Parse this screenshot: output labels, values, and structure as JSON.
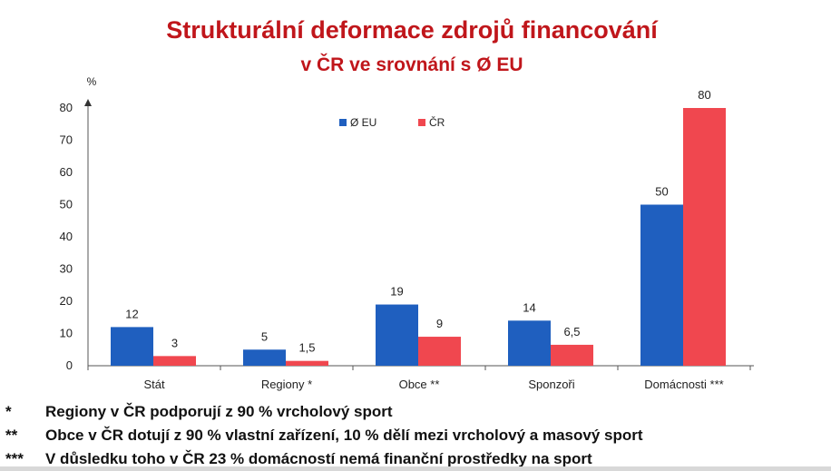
{
  "title": "Strukturální deformace zdrojů financování",
  "subtitle": "v ČR ve srovnání s Ø EU",
  "colors": {
    "eu": "#1f5fbf",
    "cr": "#f0474f",
    "title": "#c0161b"
  },
  "chart_data": {
    "type": "bar",
    "ylabel": "%",
    "ylim": [
      0,
      80
    ],
    "yticks": [
      0,
      10,
      20,
      30,
      40,
      50,
      60,
      70,
      80
    ],
    "categories": [
      "Stát",
      "Regiony *",
      "Obce **",
      "Sponzoři",
      "Domácnosti ***"
    ],
    "series": [
      {
        "name": "Ø EU",
        "color": "#1f5fbf",
        "values": [
          12,
          5,
          19,
          14,
          50
        ],
        "labels": [
          "12",
          "5",
          "19",
          "14",
          "50"
        ]
      },
      {
        "name": "ČR",
        "color": "#f0474f",
        "values": [
          3,
          1.5,
          9,
          6.5,
          80
        ],
        "labels": [
          "3",
          "1,5",
          "9",
          "6,5",
          "80"
        ]
      }
    ],
    "legend_position": "top-center",
    "grid": false
  },
  "notes": [
    {
      "mark": "*",
      "text": "Regiony v ČR podporují z 90 % vrcholový sport"
    },
    {
      "mark": "**",
      "text": "Obce v ČR dotují z 90 % vlastní zařízení, 10 % dělí mezi vrcholový a masový sport"
    },
    {
      "mark": "***",
      "text": "V důsledku toho v ČR 23 % domácností nemá finanční prostředky na sport"
    }
  ]
}
